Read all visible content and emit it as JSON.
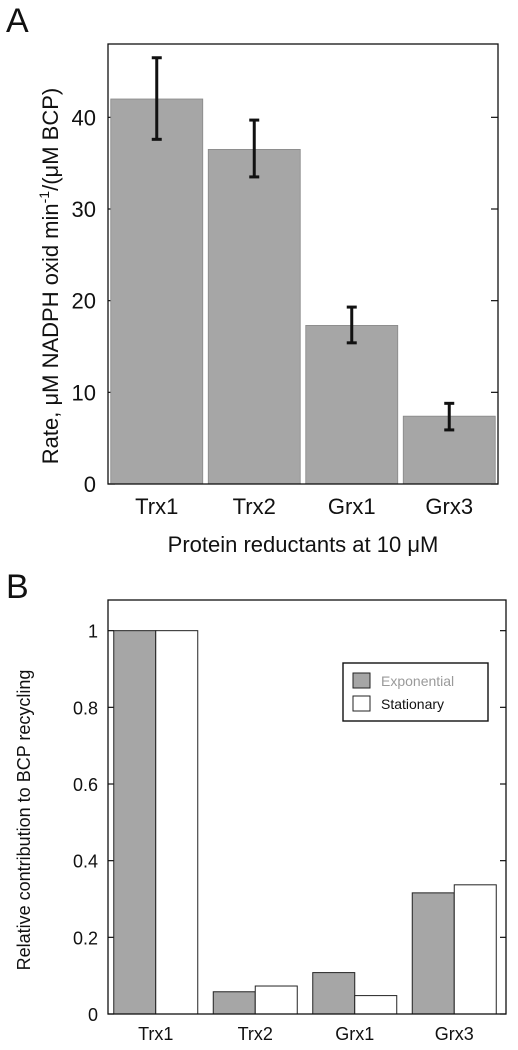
{
  "panels": [
    {
      "letter": "A"
    },
    {
      "letter": "B"
    }
  ],
  "chart_data": [
    {
      "type": "bar",
      "panel": "A",
      "categories": [
        "Trx1",
        "Trx2",
        "Grx1",
        "Grx3"
      ],
      "values": [
        42.0,
        36.5,
        17.3,
        7.4
      ],
      "error_upper": [
        46.5,
        39.7,
        19.3,
        8.8
      ],
      "error_lower": [
        37.6,
        33.5,
        15.4,
        5.9
      ],
      "xlabel": "Protein reductants at 10 μM",
      "ylabel_main": "Rate, μM NADPH oxid min",
      "ylabel_sup": "-1",
      "ylabel_tail": "/(μM BCP)",
      "ylim": [
        0,
        48
      ],
      "yticks": [
        0,
        10,
        20,
        30,
        40
      ],
      "ytick_labels": [
        "0",
        "10",
        "20",
        "30",
        "40"
      ],
      "bar_color": "#a6a6a6",
      "grid": false
    },
    {
      "type": "bar",
      "panel": "B",
      "categories": [
        "Trx1",
        "Trx2",
        "Grx1",
        "Grx3"
      ],
      "series": [
        {
          "name": "Exponential",
          "values": [
            1.0,
            0.058,
            0.108,
            0.316
          ],
          "color": "#a6a6a6"
        },
        {
          "name": "Stationary",
          "values": [
            1.0,
            0.073,
            0.048,
            0.337
          ],
          "color": "#ffffff"
        }
      ],
      "xlabel": "",
      "ylabel": "Relative contribution to BCP recycling",
      "ylim": [
        0,
        1.08
      ],
      "yticks": [
        0,
        0.2,
        0.4,
        0.6,
        0.8,
        1
      ],
      "ytick_labels": [
        "0",
        "0.2",
        "0.4",
        "0.6",
        "0.8",
        "1"
      ],
      "legend_position": "top-right",
      "grid": false
    }
  ]
}
